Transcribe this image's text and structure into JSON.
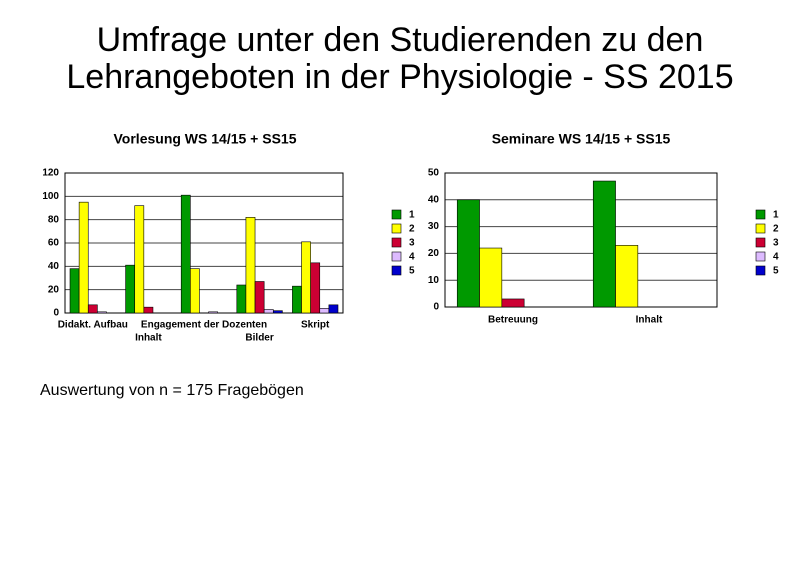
{
  "title": "Umfrage unter den Studierenden zu den Lehrangeboten in der Physiologie - SS 2015",
  "note": "Auswertung von n = 175 Fragebögen",
  "chart_data": [
    {
      "type": "bar",
      "title": "Vorlesung WS 14/15 + SS15",
      "categories": [
        "Didakt. Aufbau",
        "Inhalt",
        "Engagement der Dozenten",
        "Bilder",
        "Skript"
      ],
      "series": [
        {
          "name": "1",
          "color": "#009900",
          "values": [
            38,
            41,
            101,
            24,
            23
          ]
        },
        {
          "name": "2",
          "color": "#ffff00",
          "values": [
            95,
            92,
            38,
            82,
            61
          ]
        },
        {
          "name": "3",
          "color": "#cc0033",
          "values": [
            7,
            5,
            0,
            27,
            43
          ]
        },
        {
          "name": "4",
          "color": "#ddbbff",
          "values": [
            1,
            0,
            1,
            3,
            4
          ]
        },
        {
          "name": "5",
          "color": "#0000cc",
          "values": [
            0,
            0,
            0,
            2,
            7
          ]
        }
      ],
      "ylim": [
        0,
        120
      ],
      "yticks": [
        0,
        20,
        40,
        60,
        80,
        100,
        120
      ],
      "grid": true,
      "legend": "right"
    },
    {
      "type": "bar",
      "title": "Seminare WS 14/15 + SS15",
      "categories": [
        "Betreuung",
        "Inhalt"
      ],
      "series": [
        {
          "name": "1",
          "color": "#009900",
          "values": [
            40,
            47
          ]
        },
        {
          "name": "2",
          "color": "#ffff00",
          "values": [
            22,
            23
          ]
        },
        {
          "name": "3",
          "color": "#cc0033",
          "values": [
            3,
            0
          ]
        },
        {
          "name": "4",
          "color": "#ddbbff",
          "values": [
            0,
            0
          ]
        },
        {
          "name": "5",
          "color": "#0000cc",
          "values": [
            0,
            0
          ]
        }
      ],
      "ylim": [
        0,
        50
      ],
      "yticks": [
        0,
        10,
        20,
        30,
        40,
        50
      ],
      "grid": true,
      "legend": "right"
    }
  ]
}
